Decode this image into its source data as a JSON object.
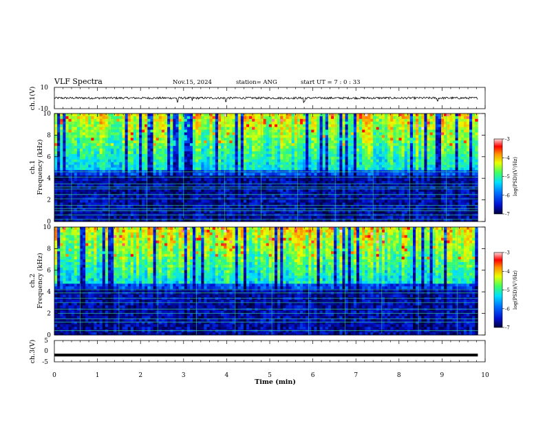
{
  "header": {
    "title": "VLF Spectra",
    "date": "Nov.15, 2024",
    "station": "station= ANG",
    "start": "start  UT =   7 : 0   : 33"
  },
  "colors": {
    "spectrogram_scale": [
      "#00003c",
      "#0010d0",
      "#0070ff",
      "#00e0ff",
      "#40ff60",
      "#e8ff00",
      "#ff9000",
      "#ff0000",
      "#ffd8d8"
    ],
    "trace": "#000000",
    "tones": "#38e0a0"
  },
  "chart_data": [
    {
      "type": "line",
      "name": "ch.1 waveform",
      "ylabel": "ch.1(V)",
      "ylim": [
        -10,
        10
      ],
      "yticks": [
        "10",
        "-10"
      ],
      "baseline": 0,
      "noise_amplitude": 1.0,
      "spikes": [
        {
          "t": 2.86,
          "v": -3.8
        },
        {
          "t": 3.2,
          "v": -2.5
        },
        {
          "t": 3.98,
          "v": -3.5
        },
        {
          "t": 5.79,
          "v": -4.5
        },
        {
          "t": 5.81,
          "v": -3
        },
        {
          "t": 8.9,
          "v": -2.8
        }
      ]
    },
    {
      "type": "heatmap",
      "name": "ch.1 spectrogram",
      "ylabel": "ch.1\nFrequency (kHz)",
      "ylim": [
        0,
        10
      ],
      "yticks": [
        "0",
        "2",
        "4",
        "6",
        "8",
        "10"
      ],
      "xlim": [
        0,
        9.83
      ],
      "color_range": [
        -7,
        -3
      ],
      "colorbar_ticks": [
        "-3",
        "-4",
        "-5",
        "-6",
        "-7"
      ],
      "colorbar_label": "log(PSD)(V²/Hz)",
      "tone_lines_khz": [
        0.2,
        0.6,
        1.0,
        1.2,
        1.5,
        2.1,
        2.5,
        3.0,
        3.2,
        3.5,
        4.1,
        4.6
      ],
      "vertical_lines_min": [
        0.4,
        1.27,
        2.15,
        3.0,
        3.95,
        4.8,
        5.65,
        6.52,
        7.4,
        8.25,
        9.1
      ]
    },
    {
      "type": "heatmap",
      "name": "ch.2 spectrogram",
      "ylabel": "ch.2\nFrequency (kHz)",
      "ylim": [
        0,
        10
      ],
      "yticks": [
        "0",
        "2",
        "4",
        "6",
        "8",
        "10"
      ],
      "xlim": [
        0,
        9.83
      ],
      "color_range": [
        -7,
        -3
      ],
      "colorbar_ticks": [
        "-3",
        "-4",
        "-5",
        "-6",
        "-7"
      ],
      "colorbar_label": "log(PSD)(V²/Hz)",
      "tone_lines_khz": [
        0.4,
        1.2,
        1.5,
        2.0,
        2.4,
        3.0,
        3.4,
        3.9,
        4.2
      ],
      "vertical_lines_min": [
        0.6,
        1.5,
        2.4,
        3.3,
        4.2,
        5.05,
        5.9,
        6.75,
        7.6,
        8.45,
        9.35
      ]
    },
    {
      "type": "line",
      "name": "ch.3 waveform",
      "ylabel": "ch.3(V)",
      "ylim": [
        -5,
        5
      ],
      "yticks": [
        "5",
        "0",
        "-5"
      ],
      "xlabel": "Time (min)",
      "xlim": [
        0,
        10
      ],
      "xticks": [
        "0",
        "1",
        "2",
        "3",
        "4",
        "5",
        "6",
        "7",
        "8",
        "9",
        "10"
      ],
      "series": [
        {
          "name": "ch.3",
          "t": [
            0,
            9.83
          ],
          "v": [
            -1.8,
            -1.8
          ]
        }
      ]
    }
  ]
}
